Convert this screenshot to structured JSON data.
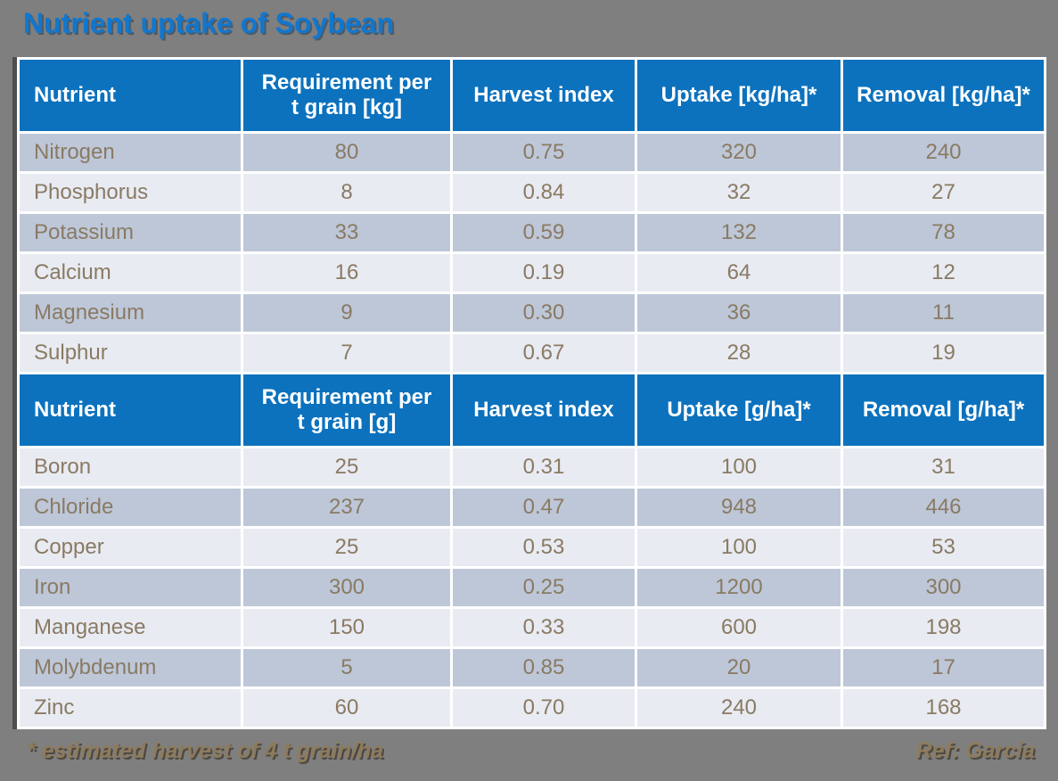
{
  "slide": {
    "title": "Nutrient uptake of Soybean",
    "footnote_left": "* estimated harvest of 4 t grain/ha",
    "footnote_right": "Ref: García"
  },
  "colors": {
    "background": "#7f7f7f",
    "header_bg": "#0c72be",
    "row_dark": "#bdc7d8",
    "row_light": "#e8ebf2",
    "grid_lines": "#ffffff",
    "table_left_edge": "#4e4e4e",
    "title_text": "#1177ce",
    "header_text": "#ffffff",
    "data_text": "#8a7a63",
    "footnote_text": "#8d7b5c"
  },
  "table": {
    "column_keys": [
      "nutrient",
      "requirement",
      "harvest_index",
      "uptake",
      "removal"
    ],
    "sections": [
      {
        "headers": [
          "Nutrient",
          "Requirement  per\nt grain [kg]",
          "Harvest index",
          "Uptake  [kg/ha]*",
          "Removal [kg/ha]*"
        ],
        "first_row_shade": "dark",
        "rows": [
          [
            "Nitrogen",
            "80",
            "0.75",
            "320",
            "240"
          ],
          [
            "Phosphorus",
            "8",
            "0.84",
            "32",
            "27"
          ],
          [
            "Potassium",
            "33",
            "0.59",
            "132",
            "78"
          ],
          [
            "Calcium",
            "16",
            "0.19",
            "64",
            "12"
          ],
          [
            "Magnesium",
            "9",
            "0.30",
            "36",
            "11"
          ],
          [
            "Sulphur",
            "7",
            "0.67",
            "28",
            "19"
          ]
        ]
      },
      {
        "headers": [
          "Nutrient",
          "Requirement  per\nt grain [g]",
          "Harvest index",
          "Uptake [g/ha]*",
          "Removal [g/ha]*"
        ],
        "first_row_shade": "light",
        "rows": [
          [
            "Boron",
            "25",
            "0.31",
            "100",
            "31"
          ],
          [
            "Chloride",
            "237",
            "0.47",
            "948",
            "446"
          ],
          [
            "Copper",
            "25",
            "0.53",
            "100",
            "53"
          ],
          [
            "Iron",
            "300",
            "0.25",
            "1200",
            "300"
          ],
          [
            "Manganese",
            "150",
            "0.33",
            "600",
            "198"
          ],
          [
            "Molybdenum",
            "5",
            "0.85",
            "20",
            "17"
          ],
          [
            "Zinc",
            "60",
            "0.70",
            "240",
            "168"
          ]
        ]
      }
    ]
  }
}
